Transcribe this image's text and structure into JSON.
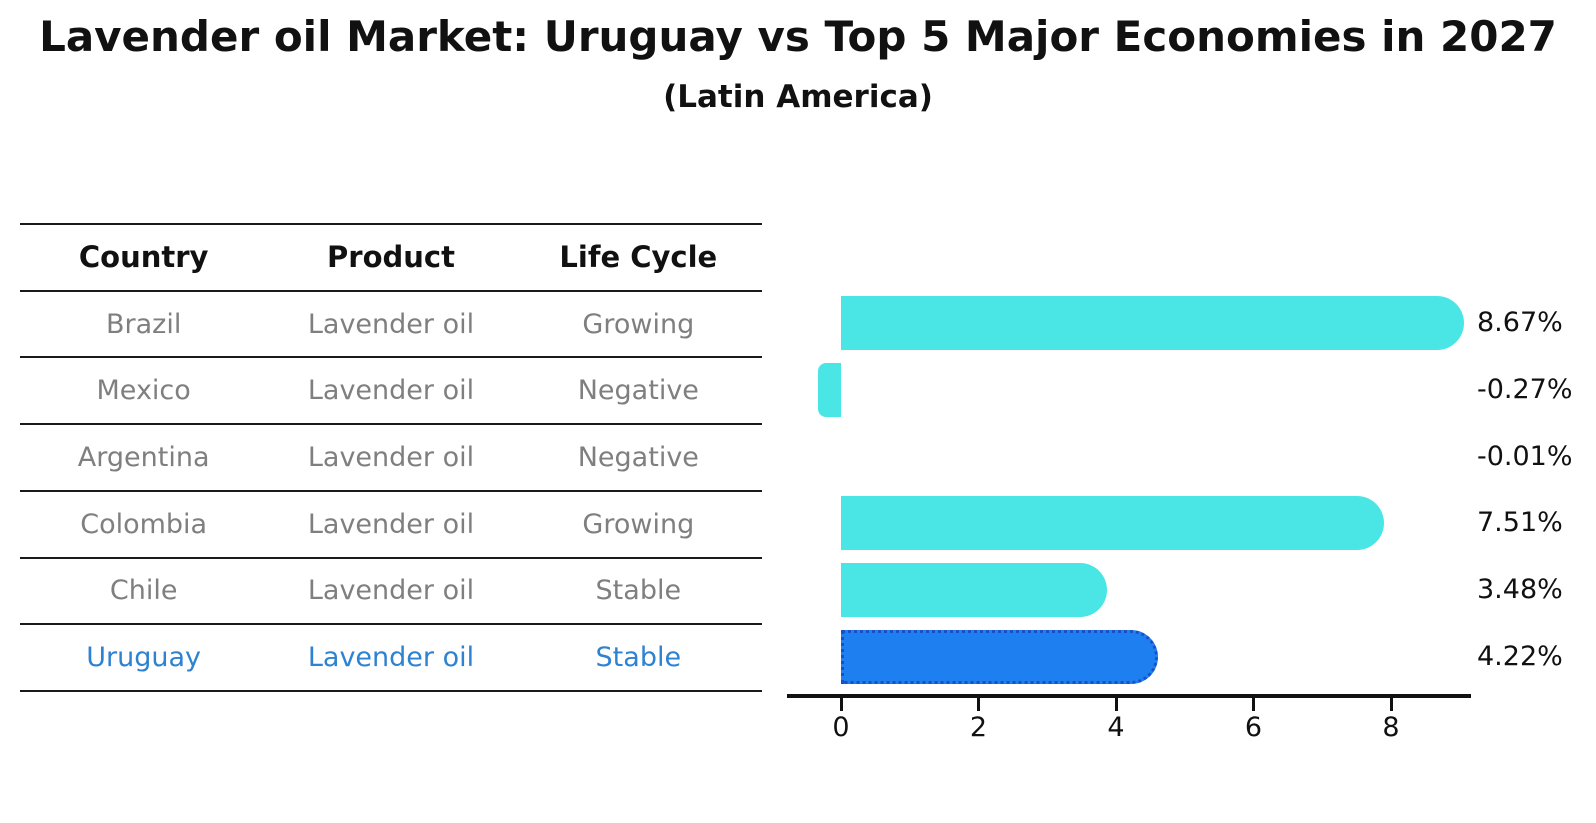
{
  "title": "Lavender oil Market: Uruguay vs Top 5 Major Economies in 2027",
  "subtitle": "(Latin America)",
  "table": {
    "headers": [
      "Country",
      "Product",
      "Life Cycle"
    ],
    "rows": [
      {
        "country": "Brazil",
        "product": "Lavender oil",
        "life_cycle": "Growing",
        "highlight": false
      },
      {
        "country": "Mexico",
        "product": "Lavender oil",
        "life_cycle": "Negative",
        "highlight": false
      },
      {
        "country": "Argentina",
        "product": "Lavender oil",
        "life_cycle": "Negative",
        "highlight": false
      },
      {
        "country": "Colombia",
        "product": "Lavender oil",
        "life_cycle": "Growing",
        "highlight": false
      },
      {
        "country": "Chile",
        "product": "Lavender oil",
        "life_cycle": "Stable",
        "highlight": false
      },
      {
        "country": "Uruguay",
        "product": "Lavender oil",
        "life_cycle": "Stable",
        "highlight": true
      }
    ]
  },
  "chart_data": {
    "type": "bar",
    "orientation": "horizontal",
    "title": "Lavender oil Market: Uruguay vs Top 5 Major Economies in 2027",
    "subtitle": "(Latin America)",
    "categories": [
      "Brazil",
      "Mexico",
      "Argentina",
      "Colombia",
      "Chile",
      "Uruguay"
    ],
    "values": [
      8.67,
      -0.27,
      -0.01,
      7.51,
      3.48,
      4.22
    ],
    "value_labels": [
      "8.67%",
      "-0.27%",
      "-0.01%",
      "7.51%",
      "3.48%",
      "4.22%"
    ],
    "x_ticks": [
      0,
      2,
      4,
      6,
      8
    ],
    "xlim": [
      -0.8,
      9.15
    ],
    "grid": false,
    "legend": null,
    "highlight_category": "Uruguay"
  },
  "colors": {
    "bar": "#4AE6E6",
    "highlight_bar": "#1E80F0",
    "highlight_border": "#1950C8",
    "highlight_text": "#2D82D2",
    "muted_text": "#7F7F7F",
    "heading_text": "#111111",
    "axis": "#111111"
  }
}
